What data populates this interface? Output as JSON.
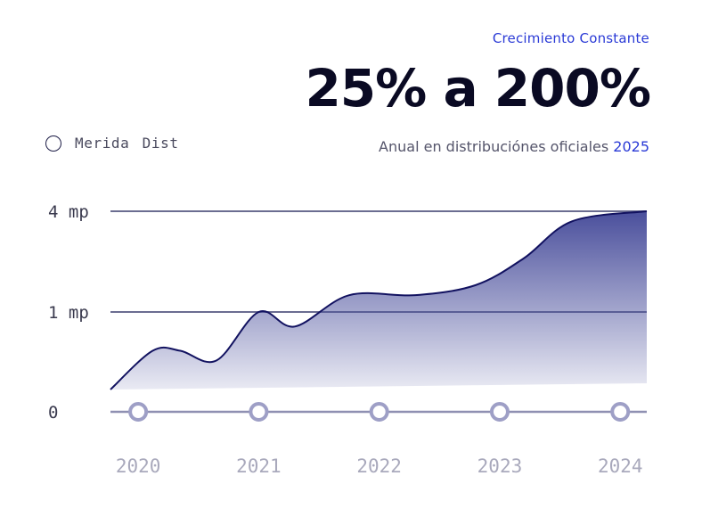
{
  "header": {
    "eyebrow": "Crecimiento Constante",
    "headline": "25% a 200%",
    "subtitle": "Anual en distribuciónes oficiales",
    "subtitle_year": "2025"
  },
  "colors": {
    "accent": "#2a3ad6",
    "line": "#121260",
    "fill_top": "#4a4f9c",
    "gridline": "#6b6d91",
    "marker": "#9e9fc6"
  },
  "chart_data": {
    "type": "area",
    "legend": [
      "Merida Dist"
    ],
    "legend_position": "top-left",
    "y_ticks": [
      "0",
      "1 mp",
      "4 mp"
    ],
    "categories": [
      "2020",
      "2021",
      "2022",
      "2023",
      "2024"
    ],
    "series": [
      {
        "name": "Merida Dist",
        "points": [
          {
            "x": 2019.77,
            "y": 0.2
          },
          {
            "x": 2020.12,
            "y": 0.6
          },
          {
            "x": 2020.35,
            "y": 0.6
          },
          {
            "x": 2020.65,
            "y": 0.5
          },
          {
            "x": 2021.0,
            "y": 1.0
          },
          {
            "x": 2021.3,
            "y": 0.85
          },
          {
            "x": 2021.75,
            "y": 1.5
          },
          {
            "x": 2022.3,
            "y": 1.5
          },
          {
            "x": 2022.8,
            "y": 1.8
          },
          {
            "x": 2023.2,
            "y": 2.6
          },
          {
            "x": 2023.6,
            "y": 3.7
          },
          {
            "x": 2024.22,
            "y": 4.0
          }
        ]
      }
    ],
    "grid": true
  }
}
